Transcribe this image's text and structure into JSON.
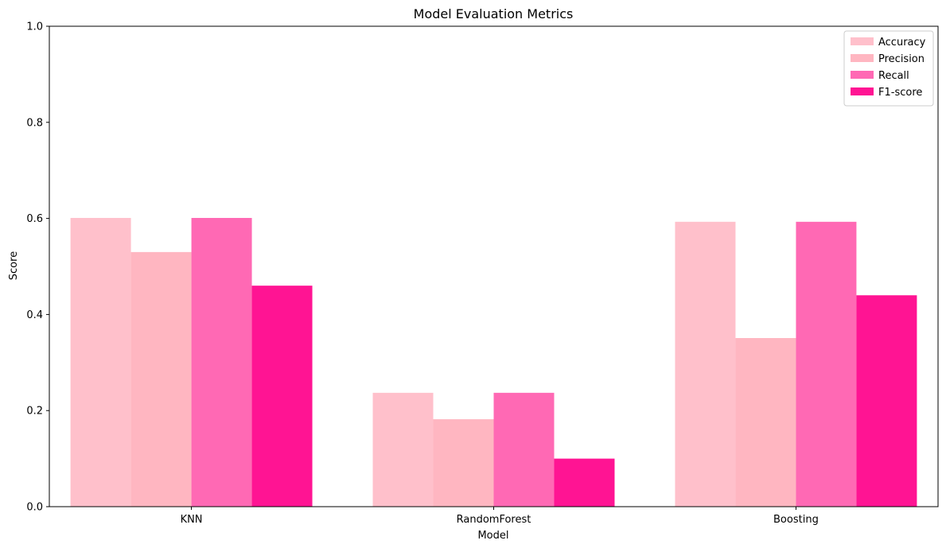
{
  "chart_data": {
    "type": "bar",
    "title": "Model Evaluation Metrics",
    "xlabel": "Model",
    "ylabel": "Score",
    "ylim": [
      0,
      1
    ],
    "yticks": [
      "0.0",
      "0.2",
      "0.4",
      "0.6",
      "0.8",
      "1.0"
    ],
    "categories": [
      "KNN",
      "RandomForest",
      "Boosting"
    ],
    "series": [
      {
        "name": "Accuracy",
        "color": "#ffc0cb",
        "values": [
          0.601,
          0.237,
          0.593
        ]
      },
      {
        "name": "Precision",
        "color": "#ffb6c1",
        "values": [
          0.53,
          0.182,
          0.351
        ]
      },
      {
        "name": "Recall",
        "color": "#ff69b4",
        "values": [
          0.601,
          0.237,
          0.593
        ]
      },
      {
        "name": "F1-score",
        "color": "#ff1493",
        "values": [
          0.46,
          0.1,
          0.44
        ]
      }
    ],
    "grid": false,
    "legend_position": "top-right"
  }
}
